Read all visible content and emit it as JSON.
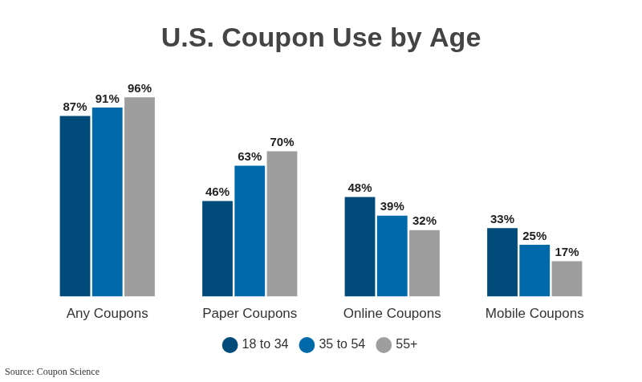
{
  "chart_data": {
    "type": "bar",
    "title": "U.S. Coupon Use by Age",
    "source": "Source: Coupon Science",
    "categories": [
      "Any Coupons",
      "Paper Coupons",
      "Online Coupons",
      "Mobile Coupons"
    ],
    "series": [
      {
        "name": "18 to 34",
        "color": "#004b7a",
        "values": [
          87,
          46,
          48,
          33
        ],
        "value_labels": [
          "87%",
          "46%",
          "48%",
          "33%"
        ]
      },
      {
        "name": "35 to 54",
        "color": "#0069aa",
        "values": [
          91,
          63,
          39,
          25
        ],
        "value_labels": [
          "91%",
          "63%",
          "39%",
          "25%"
        ]
      },
      {
        "name": "55+",
        "color": "#9e9e9e",
        "values": [
          96,
          70,
          32,
          17
        ],
        "value_labels": [
          "96%",
          "70%",
          "32%",
          "17%"
        ]
      }
    ],
    "ylim": [
      0,
      100
    ],
    "grid": false,
    "legend": "bottom",
    "data_labels": true,
    "tick_labels": "x"
  }
}
